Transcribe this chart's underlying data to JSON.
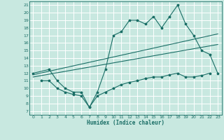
{
  "xlabel": "Humidex (Indice chaleur)",
  "bg_color": "#c8e8e0",
  "grid_color": "#ffffff",
  "line_color": "#1a6e66",
  "xlim": [
    -0.5,
    23.5
  ],
  "ylim": [
    6.5,
    21.5
  ],
  "xticks": [
    0,
    1,
    2,
    3,
    4,
    5,
    6,
    7,
    8,
    9,
    10,
    11,
    12,
    13,
    14,
    15,
    16,
    17,
    18,
    19,
    20,
    21,
    22,
    23
  ],
  "yticks": [
    7,
    8,
    9,
    10,
    11,
    12,
    13,
    14,
    15,
    16,
    17,
    18,
    19,
    20,
    21
  ],
  "upper_x": [
    0,
    2,
    3,
    4,
    5,
    6,
    7,
    8,
    9,
    10,
    11,
    12,
    13,
    14,
    15,
    16,
    17,
    18,
    19,
    20,
    21,
    22,
    23
  ],
  "upper_y": [
    12,
    12.5,
    11,
    10,
    9.5,
    9.5,
    7.5,
    9.5,
    12.5,
    17,
    17.5,
    19,
    19,
    18.5,
    19.5,
    18,
    19.5,
    21,
    18.5,
    17,
    15,
    14.5,
    12
  ],
  "lower_x": [
    1,
    2,
    3,
    4,
    5,
    6,
    7,
    8,
    9,
    10,
    11,
    12,
    13,
    14,
    15,
    16,
    17,
    18,
    19,
    20,
    21,
    22
  ],
  "lower_y": [
    11,
    11,
    10,
    9.5,
    9.2,
    9,
    7.5,
    9,
    9.5,
    10,
    10.5,
    10.8,
    11,
    11.3,
    11.5,
    11.5,
    11.8,
    12,
    11.5,
    11.5,
    11.7,
    12
  ],
  "reg_line1_x": [
    0,
    23
  ],
  "reg_line1_y": [
    11.8,
    17.2
  ],
  "reg_line2_x": [
    0,
    23
  ],
  "reg_line2_y": [
    11.5,
    15.8
  ]
}
